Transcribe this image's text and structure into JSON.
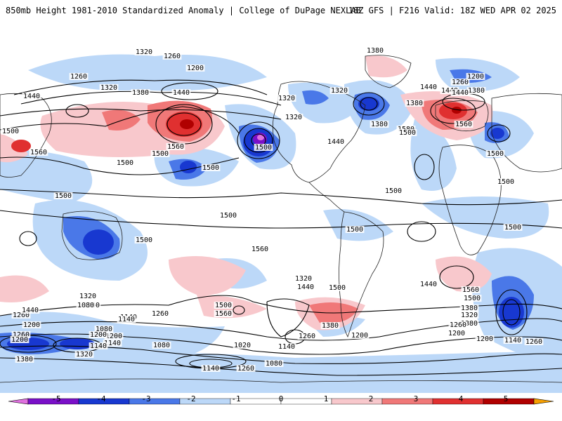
{
  "header": {
    "left_title": "850mb Height 1981-2010 Standardized Anomaly | College of DuPage NEXLAB",
    "right_title": "18Z GFS | F216 Valid: 18Z WED APR 02 2025"
  },
  "colors": {
    "neg5": "#e070e0",
    "neg4": "#7a10c8",
    "neg3": "#1838d0",
    "neg2": "#4a78e8",
    "neg1": "#bcd8f8",
    "pos1": "#f8c8cc",
    "pos2": "#f07878",
    "pos3": "#e03030",
    "pos4": "#b00000",
    "pos5": "#f8a000",
    "contour": "#000000"
  },
  "colorbar": {
    "labels": [
      "-5",
      "-4",
      "-3",
      "-2",
      "-1",
      "0",
      "1",
      "2",
      "3",
      "4",
      "5"
    ]
  },
  "map": {
    "contour_labels": [
      "1320",
      "1260",
      "1200",
      "1380",
      "1260",
      "1320",
      "1380",
      "1440",
      "1260",
      "1200",
      "1440",
      "1380",
      "1320",
      "1440",
      "1320",
      "1440",
      "1380",
      "1320",
      "1440",
      "1380",
      "1500",
      "1560",
      "1560",
      "1500",
      "1500",
      "1500",
      "1580",
      "1500",
      "1440",
      "1500",
      "1560",
      "1500",
      "1500",
      "1500",
      "1500",
      "1500",
      "1500",
      "1560",
      "1500",
      "1500",
      "1440",
      "1320",
      "1500",
      "1440",
      "1560",
      "1500",
      "1380",
      "1320",
      "1380",
      "1260",
      "1200",
      "1260",
      "1200",
      "1260",
      "1320",
      "1380",
      "1440",
      "1500",
      "1560",
      "1200",
      "1140",
      "1080",
      "1260",
      "1140",
      "1020",
      "1140",
      "1080",
      "1200",
      "1140",
      "1080",
      "1200",
      "1140",
      "1200",
      "1140",
      "1260",
      "1380",
      "1260",
      "1200",
      "1320",
      "1380",
      "1140",
      "1260",
      "1080"
    ]
  }
}
